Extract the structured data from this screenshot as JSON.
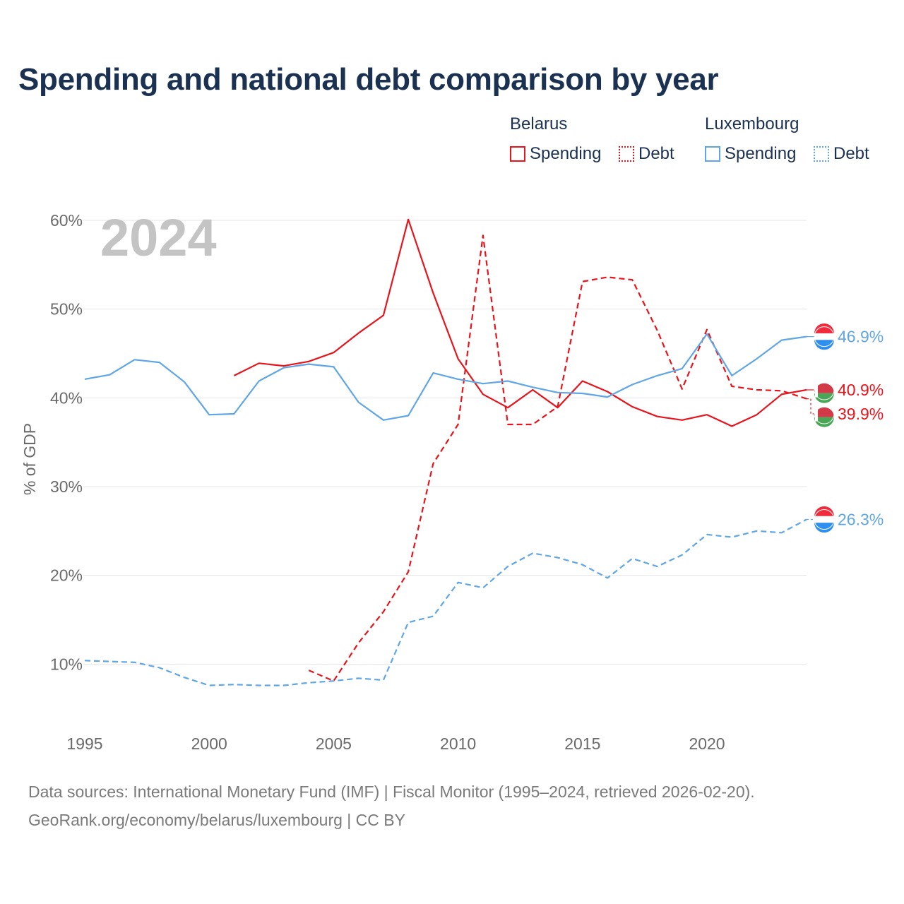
{
  "title": "Spending and national debt comparison by year",
  "legend": {
    "groups": [
      {
        "country": "Belarus",
        "color": "#e8131b",
        "items": [
          {
            "label": "Spending",
            "style": "solid"
          },
          {
            "label": "Debt",
            "style": "dotted"
          }
        ]
      },
      {
        "country": "Luxembourg",
        "color": "#5fa6e6",
        "items": [
          {
            "label": "Spending",
            "style": "solid"
          },
          {
            "label": "Debt",
            "style": "dotted"
          }
        ]
      }
    ]
  },
  "year_label": "2024",
  "footer": {
    "line1": "Data sources: International Monetary Fund (IMF) | Fiscal Monitor (1995–2024, retrieved 2026-02-20).",
    "line2": "GeoRank.org/economy/belarus/luxembourg | CC BY"
  },
  "chart_data": {
    "type": "line",
    "title": "Spending and national debt comparison by year",
    "xlabel": "",
    "ylabel": "% of GDP",
    "xlim": [
      1995,
      2024
    ],
    "ylim": [
      0,
      60
    ],
    "x_ticks": [
      1995,
      2000,
      2005,
      2010,
      2015,
      2020
    ],
    "y_ticks": [
      10,
      20,
      30,
      40,
      50,
      60
    ],
    "y_tick_labels": [
      "10%",
      "20%",
      "30%",
      "40%",
      "50%",
      "60%"
    ],
    "grid": true,
    "series": [
      {
        "name": "Belarus Spending",
        "country": "Belarus",
        "measure": "Spending",
        "dashed": false,
        "color": "#e8131b",
        "x": [
          2001,
          2002,
          2003,
          2004,
          2005,
          2006,
          2007,
          2008,
          2009,
          2010,
          2011,
          2012,
          2013,
          2014,
          2015,
          2016,
          2017,
          2018,
          2019,
          2020,
          2021,
          2022,
          2023,
          2024
        ],
        "values": [
          42.5,
          43.9,
          43.6,
          44.1,
          45.1,
          47.3,
          49.3,
          60.1,
          51.8,
          44.4,
          40.4,
          38.9,
          40.9,
          38.9,
          41.9,
          40.7,
          39.0,
          37.9,
          37.5,
          38.1,
          36.8,
          38.1,
          40.4,
          40.9
        ],
        "end_label": "40.9%"
      },
      {
        "name": "Belarus Debt",
        "country": "Belarus",
        "measure": "Debt",
        "dashed": true,
        "color": "#e8131b",
        "x": [
          2004,
          2005,
          2006,
          2007,
          2008,
          2009,
          2010,
          2011,
          2012,
          2013,
          2014,
          2015,
          2016,
          2017,
          2018,
          2019,
          2020,
          2021,
          2022,
          2023,
          2024
        ],
        "values": [
          9.3,
          8.1,
          12.4,
          15.9,
          20.4,
          32.6,
          37.0,
          58.3,
          37.0,
          37.0,
          39.0,
          53.1,
          53.6,
          53.3,
          47.6,
          41.0,
          47.7,
          41.3,
          40.9,
          40.8,
          39.9
        ],
        "end_label": "39.9%"
      },
      {
        "name": "Luxembourg Spending",
        "country": "Luxembourg",
        "measure": "Spending",
        "dashed": false,
        "color": "#5fa6e6",
        "x": [
          1995,
          1996,
          1997,
          1998,
          1999,
          2000,
          2001,
          2002,
          2003,
          2004,
          2005,
          2006,
          2007,
          2008,
          2009,
          2010,
          2011,
          2012,
          2013,
          2014,
          2015,
          2016,
          2017,
          2018,
          2019,
          2020,
          2021,
          2022,
          2023,
          2024
        ],
        "values": [
          42.1,
          42.6,
          44.3,
          44.0,
          41.8,
          38.1,
          38.2,
          41.9,
          43.4,
          43.8,
          43.5,
          39.5,
          37.5,
          38.0,
          42.8,
          42.1,
          41.6,
          41.9,
          41.2,
          40.6,
          40.5,
          40.1,
          41.5,
          42.5,
          43.3,
          47.2,
          42.5,
          44.4,
          46.5,
          46.9
        ],
        "end_label": "46.9%"
      },
      {
        "name": "Luxembourg Debt",
        "country": "Luxembourg",
        "measure": "Debt",
        "dashed": true,
        "color": "#5fa6e6",
        "x": [
          1995,
          1996,
          1997,
          1998,
          1999,
          2000,
          2001,
          2002,
          2003,
          2004,
          2005,
          2006,
          2007,
          2008,
          2009,
          2010,
          2011,
          2012,
          2013,
          2014,
          2015,
          2016,
          2017,
          2018,
          2019,
          2020,
          2021,
          2022,
          2023,
          2024
        ],
        "values": [
          10.4,
          10.3,
          10.2,
          9.6,
          8.5,
          7.6,
          7.7,
          7.6,
          7.6,
          7.9,
          8.1,
          8.4,
          8.2,
          14.7,
          15.4,
          19.2,
          18.6,
          21.0,
          22.5,
          22.0,
          21.2,
          19.7,
          21.9,
          21.0,
          22.3,
          24.6,
          24.3,
          25.0,
          24.8,
          26.3
        ],
        "end_label": "26.3%"
      }
    ]
  }
}
